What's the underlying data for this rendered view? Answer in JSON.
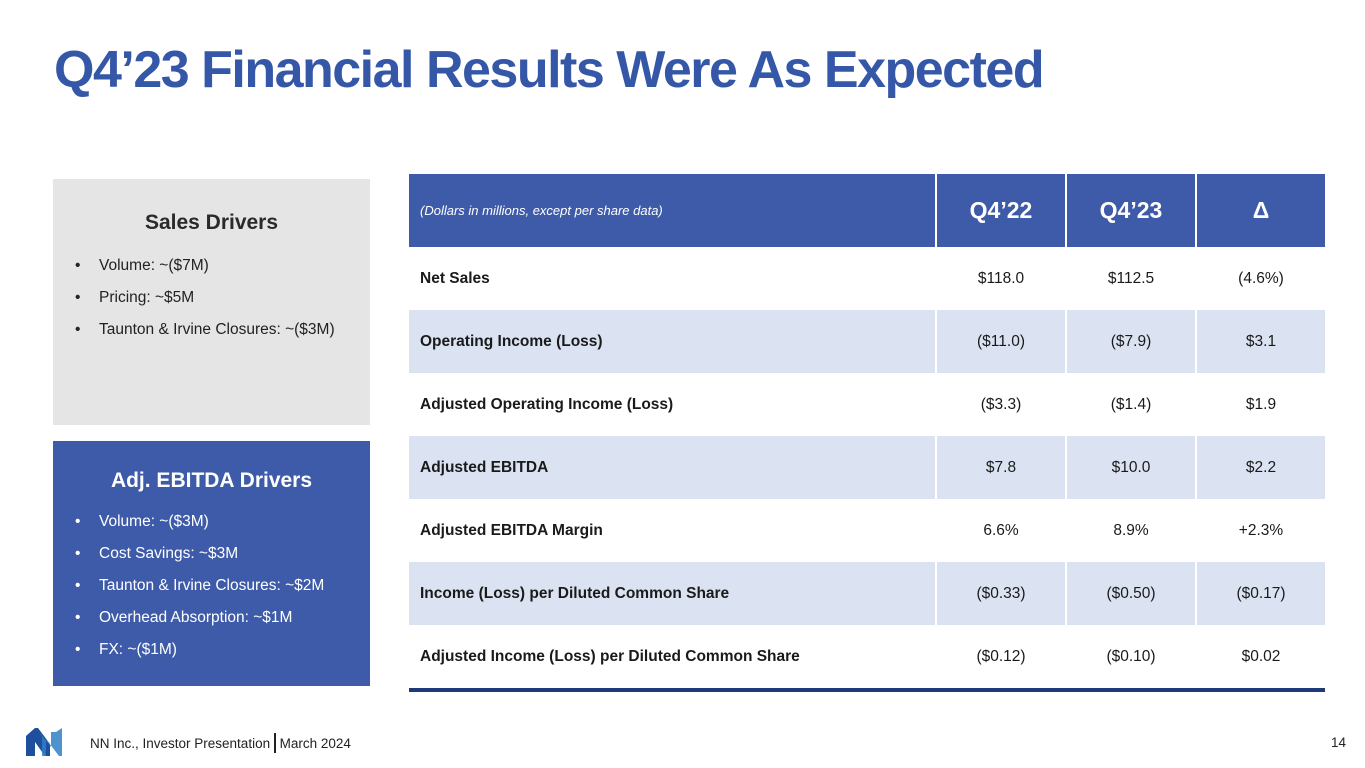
{
  "title": "Q4’23 Financial Results Were As Expected",
  "colors": {
    "title": "#3557a8",
    "header_fill": "#3e5ba9",
    "band_fill": "#dbe3f2",
    "sales_box_fill": "#e5e5e5",
    "table_bottom_rule": "#1f3a7a"
  },
  "sales_drivers": {
    "heading": "Sales Drivers",
    "items": [
      "Volume: ~($7M)",
      "Pricing: ~$5M",
      "Taunton & Irvine Closures: ~($3M)"
    ]
  },
  "ebitda_drivers": {
    "heading": "Adj. EBITDA Drivers",
    "items": [
      "Volume: ~($3M)",
      "Cost Savings: ~$3M",
      "Taunton & Irvine Closures: ~$2M",
      "Overhead Absorption: ~$1M",
      "FX: ~($1M)"
    ]
  },
  "table": {
    "units_note": "(Dollars in millions, except per share data)",
    "columns": [
      "Q4’22",
      "Q4’23",
      "Δ"
    ],
    "rows": [
      {
        "label": "Net Sales",
        "q4_22": "$118.0",
        "q4_23": "$112.5",
        "delta": "(4.6%)"
      },
      {
        "label": "Operating Income (Loss)",
        "q4_22": "($11.0)",
        "q4_23": "($7.9)",
        "delta": "$3.1"
      },
      {
        "label": "Adjusted Operating Income (Loss)",
        "q4_22": "($3.3)",
        "q4_23": "($1.4)",
        "delta": "$1.9"
      },
      {
        "label": "Adjusted EBITDA",
        "q4_22": "$7.8",
        "q4_23": "$10.0",
        "delta": "$2.2"
      },
      {
        "label": "Adjusted EBITDA Margin",
        "q4_22": "6.6%",
        "q4_23": "8.9%",
        "delta": "+2.3%"
      },
      {
        "label": "Income (Loss) per Diluted Common Share",
        "q4_22": "($0.33)",
        "q4_23": "($0.50)",
        "delta": "($0.17)"
      },
      {
        "label": "Adjusted Income (Loss) per Diluted Common Share",
        "q4_22": "($0.12)",
        "q4_23": "($0.10)",
        "delta": "$0.02"
      }
    ]
  },
  "footer": {
    "logo_icon": "nn-logo-icon",
    "company": "NN Inc., Investor Presentation",
    "date": "March 2024",
    "page_number": "14"
  }
}
